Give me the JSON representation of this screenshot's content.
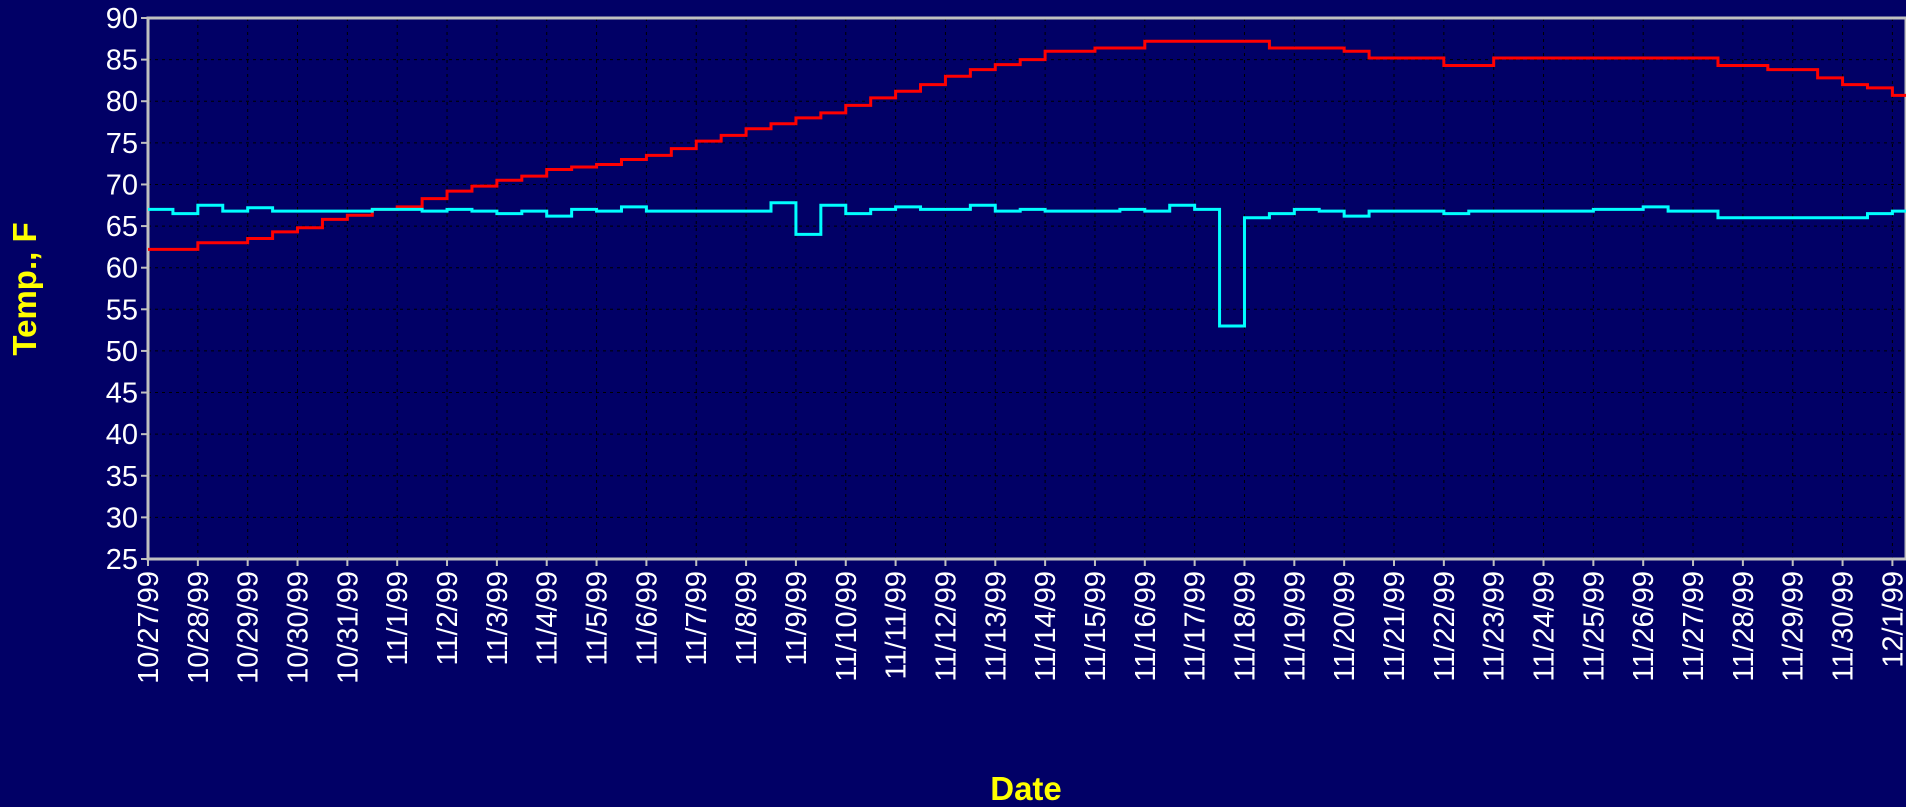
{
  "chart_data": {
    "type": "line",
    "y_label": "Temp., F",
    "x_label": "Date",
    "categories": [
      "10/27/99",
      null,
      "10/28/99",
      null,
      "10/29/99",
      null,
      "10/30/99",
      null,
      "10/31/99",
      null,
      "11/1/99",
      null,
      "11/2/99",
      null,
      "11/3/99",
      null,
      "11/4/99",
      null,
      "11/5/99",
      null,
      "11/6/99",
      null,
      "11/7/99",
      null,
      "11/8/99",
      null,
      "11/9/99",
      null,
      "11/10/99",
      null,
      "11/11/99",
      null,
      "11/12/99",
      null,
      "11/13/99",
      null,
      "11/14/99",
      null,
      "11/15/99",
      null,
      "11/16/99",
      null,
      "11/17/99",
      null,
      "11/18/99",
      null,
      "11/19/99",
      null,
      "11/20/99",
      null,
      "11/21/99",
      null,
      "11/22/99",
      null,
      "11/23/99",
      null,
      "11/24/99",
      null,
      "11/25/99",
      null,
      "11/26/99",
      null,
      "11/27/99",
      null,
      "11/28/99",
      null,
      "11/29/99",
      null,
      "11/30/99",
      null,
      "12/1/99"
    ],
    "series": [
      {
        "color": "#ff0000",
        "values": [
          62.2,
          62.2,
          63,
          63,
          63.5,
          64.3,
          64.8,
          65.8,
          66.3,
          67,
          67.3,
          68.3,
          69.2,
          69.8,
          70.5,
          71,
          71.8,
          72.1,
          72.4,
          73,
          73.5,
          74.3,
          75.2,
          75.9,
          76.7,
          77.3,
          78,
          78.6,
          79.5,
          80.4,
          81.2,
          82,
          83,
          83.8,
          84.4,
          85,
          86,
          86,
          86.4,
          86.4,
          87.2,
          87.2,
          87.2,
          87.2,
          87.2,
          86.4,
          86.4,
          86.4,
          86,
          85.2,
          85.2,
          85.2,
          84.3,
          84.3,
          85.2,
          85.2,
          85.2,
          85.2,
          85.2,
          85.2,
          85.2,
          85.2,
          85.2,
          84.3,
          84.3,
          83.8,
          83.8,
          82.8,
          82,
          81.6,
          80.7
        ]
      },
      {
        "color": "#00ffff",
        "values": [
          67,
          66.5,
          67.5,
          66.8,
          67.2,
          66.8,
          66.8,
          66.8,
          66.8,
          67,
          67,
          66.8,
          67,
          66.8,
          66.5,
          66.8,
          66.2,
          67,
          66.8,
          67.3,
          66.8,
          66.8,
          66.8,
          66.8,
          66.8,
          67.8,
          64,
          67.5,
          66.5,
          67,
          67.3,
          67,
          67,
          67.5,
          66.8,
          67,
          66.8,
          66.8,
          66.8,
          67,
          66.8,
          67.5,
          67,
          53,
          66,
          66.5,
          67,
          66.8,
          66.2,
          66.8,
          66.8,
          66.8,
          66.5,
          66.8,
          66.8,
          66.8,
          66.8,
          66.8,
          67,
          67,
          67.3,
          66.8,
          66.8,
          66,
          66,
          66,
          66,
          66,
          66,
          66.5,
          66.8
        ]
      }
    ],
    "ylim": [
      25,
      90
    ],
    "yticks": [
      25,
      30,
      35,
      40,
      45,
      50,
      55,
      60,
      65,
      70,
      75,
      80,
      85,
      90
    ],
    "grid": true
  }
}
